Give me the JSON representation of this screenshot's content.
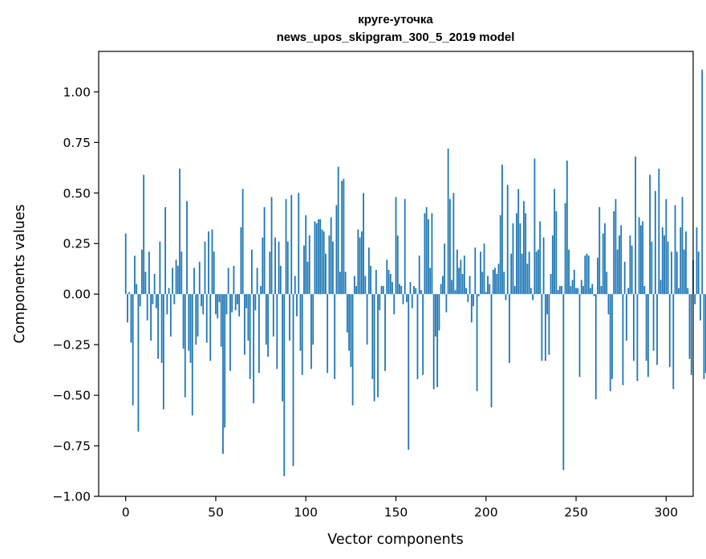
{
  "chart_data": {
    "type": "bar",
    "title": "круге-уточка",
    "subtitle": "news_upos_skipgram_300_5_2019 model",
    "xlabel": "Vector components",
    "ylabel": "Components values",
    "xlim": [
      -15,
      315
    ],
    "ylim": [
      -1.0,
      1.2
    ],
    "xticks": [
      0,
      50,
      100,
      150,
      200,
      250,
      300
    ],
    "xtick_labels": [
      "0",
      "50",
      "100",
      "150",
      "200",
      "250",
      "300"
    ],
    "yticks": [
      -1.0,
      -0.75,
      -0.5,
      -0.25,
      0.0,
      0.25,
      0.5,
      0.75,
      1.0
    ],
    "ytick_labels": [
      "−1.00",
      "−0.75",
      "−0.50",
      "−0.25",
      "0.00",
      "0.25",
      "0.50",
      "0.75",
      "1.00"
    ],
    "grid": false,
    "bar_color": "#1f77b4",
    "values": [
      0.3,
      -0.14,
      0.01,
      -0.24,
      -0.55,
      0.19,
      0.05,
      -0.68,
      -0.06,
      0.22,
      0.59,
      0.11,
      -0.13,
      0.21,
      -0.23,
      -0.05,
      0.1,
      -0.07,
      -0.32,
      0.26,
      -0.34,
      -0.57,
      0.43,
      -0.1,
      0.03,
      -0.21,
      0.13,
      -0.05,
      0.17,
      0.14,
      0.62,
      0.21,
      -0.27,
      -0.51,
      0.46,
      -0.28,
      -0.34,
      -0.6,
      0.13,
      -0.25,
      -0.21,
      0.16,
      -0.06,
      -0.1,
      0.26,
      -0.24,
      0.31,
      -0.33,
      0.32,
      0.21,
      -0.1,
      -0.12,
      -0.04,
      -0.26,
      -0.79,
      -0.66,
      -0.1,
      0.13,
      -0.38,
      -0.09,
      0.14,
      -0.08,
      -0.05,
      -0.11,
      0.33,
      0.52,
      -0.3,
      -0.07,
      -0.23,
      -0.42,
      0.22,
      -0.54,
      -0.08,
      0.13,
      -0.39,
      0.04,
      0.28,
      0.43,
      -0.25,
      -0.31,
      0.21,
      0.48,
      -0.21,
      0.28,
      -0.37,
      0.26,
      0.14,
      -0.53,
      -0.9,
      0.47,
      0.26,
      -0.23,
      0.49,
      -0.85,
      0.09,
      -0.11,
      0.5,
      -0.28,
      -0.4,
      0.24,
      0.39,
      0.16,
      0.29,
      -0.37,
      -0.25,
      0.36,
      0.35,
      0.37,
      0.37,
      0.32,
      0.31,
      0.2,
      -0.39,
      0.29,
      0.38,
      0.26,
      -0.42,
      0.44,
      0.63,
      0.11,
      0.56,
      0.57,
      0.11,
      -0.19,
      -0.28,
      -0.36,
      -0.55,
      0.09,
      0.04,
      0.32,
      0.28,
      0.31,
      0.5,
      0.09,
      -0.25,
      0.23,
      0.14,
      -0.42,
      -0.53,
      0.12,
      -0.51,
      -0.08,
      0.04,
      0.04,
      -0.38,
      0.17,
      0.12,
      0.1,
      0.06,
      -0.1,
      0.48,
      0.29,
      0.05,
      0.04,
      -0.05,
      0.47,
      -0.04,
      -0.77,
      0.06,
      -0.07,
      0.04,
      0.03,
      -0.42,
      0.19,
      0.02,
      -0.4,
      0.4,
      0.43,
      0.37,
      0.13,
      0.4,
      -0.47,
      -0.21,
      -0.46,
      -0.18,
      0.05,
      0.09,
      0.25,
      -0.09,
      0.72,
      0.47,
      0.07,
      0.5,
      0.02,
      0.22,
      0.13,
      0.17,
      0.1,
      0.19,
      0.03,
      -0.04,
      0.09,
      -0.14,
      -0.06,
      0.23,
      -0.48,
      -0.01,
      0.21,
      0.11,
      0.25,
      0.01,
      0.09,
      0.05,
      -0.56,
      0.12,
      0.13,
      0.1,
      0.15,
      0.39,
      0.64,
      0.11,
      -0.03,
      0.54,
      -0.34,
      0.2,
      0.35,
      0.04,
      0.4,
      0.52,
      0.35,
      0.2,
      0.46,
      0.4,
      0.15,
      0.21,
      0.03,
      -0.03,
      0.67,
      0.21,
      0.22,
      0.36,
      -0.33,
      0.28,
      -0.33,
      -0.1,
      -0.3,
      0.1,
      0.29,
      0.52,
      0.41,
      0.02,
      0.04,
      0.04,
      -0.87,
      0.45,
      0.66,
      0.22,
      0.04,
      0.07,
      0.12,
      0.03,
      0.03,
      -0.41,
      0.07,
      0.04,
      0.19,
      0.2,
      0.19,
      0.03,
      0.05,
      -0.01,
      -0.52,
      0.18,
      0.43,
      0.04,
      0.3,
      0.35,
      0.11,
      -0.1,
      -0.48,
      -0.42,
      0.41,
      0.47,
      0.22,
      0.29,
      0.34,
      -0.45,
      0.16,
      -0.23,
      0.03,
      0.29,
      0.24,
      -0.33,
      0.68,
      -0.43,
      0.38,
      0.34,
      0.36,
      0.04,
      -0.33,
      -0.41,
      0.59,
      0.26,
      -0.28,
      0.51,
      -0.35,
      0.62,
      0.07,
      0.33,
      0.29,
      0.47,
      0.26,
      -0.36,
      0.21,
      -0.47,
      0.44,
      0.21,
      0.03,
      0.33,
      0.48,
      0.22,
      0.31,
      0.03,
      -0.32,
      -0.4,
      0.17,
      -0.05,
      0.33,
      0.21,
      -0.13,
      1.11,
      -0.42,
      -0.39
    ]
  }
}
